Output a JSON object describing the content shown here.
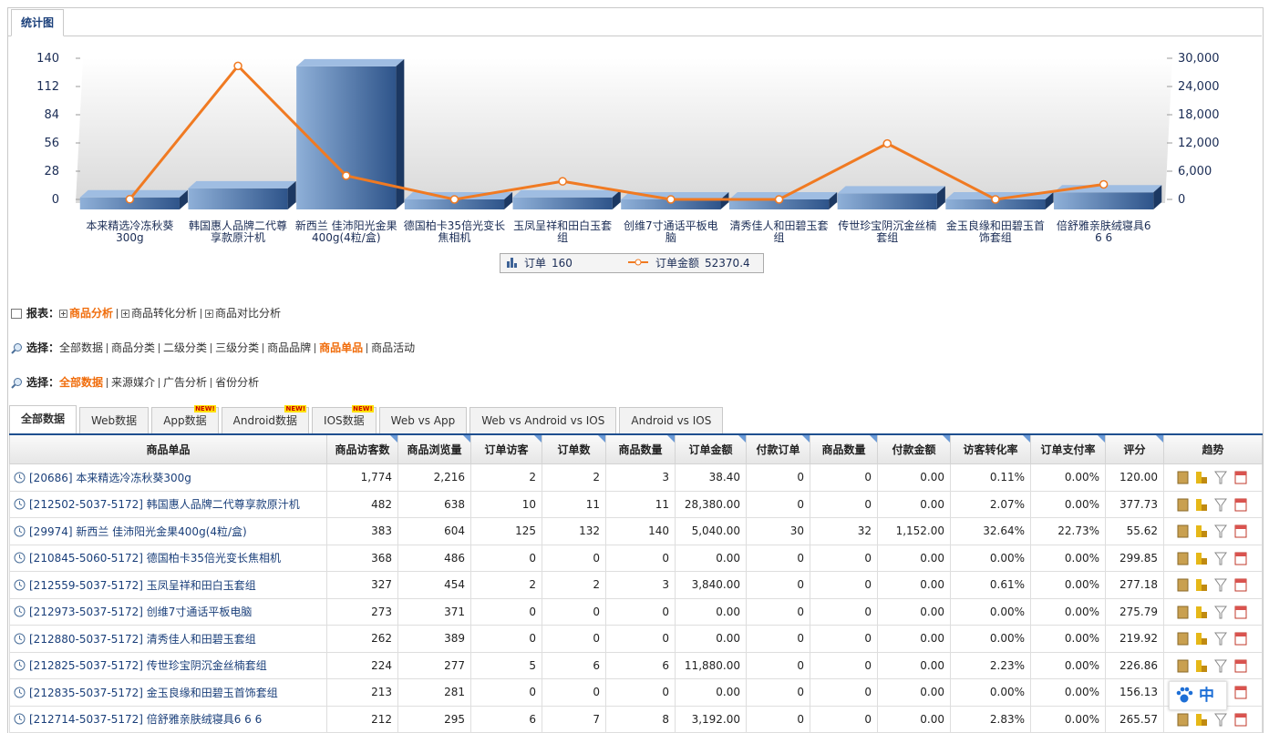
{
  "tab": "统计图",
  "chart_data": {
    "type": "bar",
    "categories": [
      "本来精选冷冻秋葵300g",
      "韩国惠人品牌二代尊享款原汁机",
      "新西兰 佳沛阳光金果400g(4粒/盒)",
      "德国柏卡35倍光变长焦相机",
      "玉凤呈祥和田白玉套组",
      "创维7寸通话平板电脑",
      "清秀佳人和田碧玉套组",
      "传世珍宝阴沉金丝楠套组",
      "金玉良缘和田碧玉首饰套组",
      "倍舒雅亲肤绒寝具6 6 6"
    ],
    "series": [
      {
        "name": "订单",
        "total": 160,
        "color": "#3d6296",
        "values": [
          2,
          11,
          132,
          0,
          2,
          0,
          0,
          6,
          0,
          7
        ]
      },
      {
        "name": "订单金额",
        "total": 52370.4,
        "color": "#f07a22",
        "axis": "y2",
        "values": [
          38.4,
          28380,
          5040,
          0,
          3840,
          0,
          0,
          11880,
          0,
          3192
        ]
      }
    ],
    "ylim": [
      0,
      140
    ],
    "yticks": [
      0,
      28,
      56,
      84,
      112,
      140
    ],
    "y2lim": [
      0,
      30000
    ],
    "y2ticks": [
      0,
      {
        "value": 6000,
        "label": "6,000"
      },
      {
        "value": 12000,
        "label": "12,000"
      },
      {
        "value": 18000,
        "label": "18,000"
      },
      {
        "value": 24000,
        "label": "24,000"
      },
      {
        "value": 30000,
        "label": "30,000"
      }
    ],
    "legend": "bottom"
  },
  "report": {
    "label": "报表：",
    "links": [
      {
        "text": "商品分析",
        "active": true
      },
      {
        "text": "商品转化分析"
      },
      {
        "text": "商品对比分析"
      }
    ]
  },
  "selectors": [
    {
      "label": "选择：",
      "links": [
        {
          "text": "全部数据"
        },
        {
          "text": "商品分类"
        },
        {
          "text": "二级分类"
        },
        {
          "text": "三级分类"
        },
        {
          "text": "商品品牌"
        },
        {
          "text": "商品单品",
          "active": true
        },
        {
          "text": "商品活动"
        }
      ]
    },
    {
      "label": "选择：",
      "links": [
        {
          "text": "全部数据",
          "active": true
        },
        {
          "text": "来源媒介"
        },
        {
          "text": "广告分析"
        },
        {
          "text": "省份分析"
        }
      ]
    }
  ],
  "data_tabs": [
    {
      "text": "全部数据",
      "active": true
    },
    {
      "text": "Web数据"
    },
    {
      "text": "App数据",
      "badge": "NEW!"
    },
    {
      "text": "Android数据",
      "badge": "NEW!"
    },
    {
      "text": "IOS数据",
      "badge": "NEW!"
    },
    {
      "text": "Web vs App"
    },
    {
      "text": "Web vs Android vs IOS"
    },
    {
      "text": "Android vs IOS"
    }
  ],
  "table": {
    "columns": [
      "商品单品",
      "商品访客数",
      "商品浏览量",
      "订单访客",
      "订单数",
      "商品数量",
      "订单金额",
      "付款订单",
      "商品数量",
      "付款金额",
      "访客转化率",
      "订单支付率",
      "评分",
      "趋势"
    ],
    "rows": [
      [
        "[20686] 本来精选冷冻秋葵300g",
        "1,774",
        "2,216",
        "2",
        "2",
        "3",
        "38.40",
        "0",
        "0",
        "0.00",
        "0.11%",
        "0.00%",
        "120.00"
      ],
      [
        "[212502-5037-5172] 韩国惠人品牌二代尊享款原汁机",
        "482",
        "638",
        "10",
        "11",
        "11",
        "28,380.00",
        "0",
        "0",
        "0.00",
        "2.07%",
        "0.00%",
        "377.73"
      ],
      [
        "[29974] 新西兰 佳沛阳光金果400g(4粒/盒)",
        "383",
        "604",
        "125",
        "132",
        "140",
        "5,040.00",
        "30",
        "32",
        "1,152.00",
        "32.64%",
        "22.73%",
        "55.62"
      ],
      [
        "[210845-5060-5172] 德国柏卡35倍光变长焦相机",
        "368",
        "486",
        "0",
        "0",
        "0",
        "0.00",
        "0",
        "0",
        "0.00",
        "0.00%",
        "0.00%",
        "299.85"
      ],
      [
        "[212559-5037-5172] 玉凤呈祥和田白玉套组",
        "327",
        "454",
        "2",
        "2",
        "3",
        "3,840.00",
        "0",
        "0",
        "0.00",
        "0.61%",
        "0.00%",
        "277.18"
      ],
      [
        "[212973-5037-5172] 创维7寸通话平板电脑",
        "273",
        "371",
        "0",
        "0",
        "0",
        "0.00",
        "0",
        "0",
        "0.00",
        "0.00%",
        "0.00%",
        "275.79"
      ],
      [
        "[212880-5037-5172] 清秀佳人和田碧玉套组",
        "262",
        "389",
        "0",
        "0",
        "0",
        "0.00",
        "0",
        "0",
        "0.00",
        "0.00%",
        "0.00%",
        "219.92"
      ],
      [
        "[212825-5037-5172] 传世珍宝阴沉金丝楠套组",
        "224",
        "277",
        "5",
        "6",
        "6",
        "11,880.00",
        "0",
        "0",
        "0.00",
        "2.23%",
        "0.00%",
        "226.86"
      ],
      [
        "[212835-5037-5172] 金玉良缘和田碧玉首饰套组",
        "213",
        "281",
        "0",
        "0",
        "0",
        "0.00",
        "0",
        "0",
        "0.00",
        "0.00%",
        "0.00%",
        "156.13"
      ],
      [
        "[212714-5037-5172] 倍舒雅亲肤绒寝具6 6 6",
        "212",
        "295",
        "6",
        "7",
        "8",
        "3,192.00",
        "0",
        "0",
        "0.00",
        "2.83%",
        "0.00%",
        "265.57"
      ]
    ]
  },
  "ime_widget": "中"
}
